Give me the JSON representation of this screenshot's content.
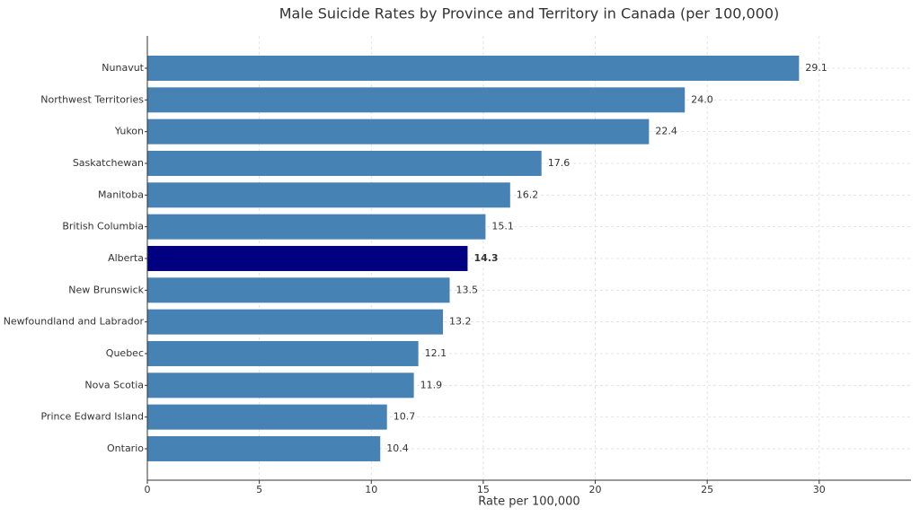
{
  "chart_data": {
    "type": "barh",
    "title": "Male Suicide Rates by Province and Territory in Canada (per 100,000)",
    "xlabel": "Rate per 100,000",
    "categories": [
      "Nunavut",
      "Northwest Territories",
      "Yukon",
      "Saskatchewan",
      "Manitoba",
      "British Columbia",
      "Alberta",
      "New Brunswick",
      "Newfoundland and Labrador",
      "Quebec",
      "Nova Scotia",
      "Prince Edward Island",
      "Ontario"
    ],
    "values": [
      29.1,
      24.0,
      22.4,
      17.6,
      16.2,
      15.1,
      14.3,
      13.5,
      13.2,
      12.1,
      11.9,
      10.7,
      10.4
    ],
    "value_labels": [
      "29.1",
      "24.0",
      "22.4",
      "17.6",
      "16.2",
      "15.1",
      "14.3",
      "13.5",
      "13.2",
      "12.1",
      "11.9",
      "10.7",
      "10.4"
    ],
    "color": "#4682b4",
    "colors": [
      "#4682b4",
      "#4682b4",
      "#4682b4",
      "#4682b4",
      "#4682b4",
      "#4682b4",
      "#000080",
      "#4682b4",
      "#4682b4",
      "#4682b4",
      "#4682b4",
      "#4682b4",
      "#4682b4"
    ],
    "xlim": [
      0,
      34.1
    ],
    "xticks": [
      0,
      5,
      10,
      15,
      20,
      25,
      30
    ],
    "grid": true
  }
}
